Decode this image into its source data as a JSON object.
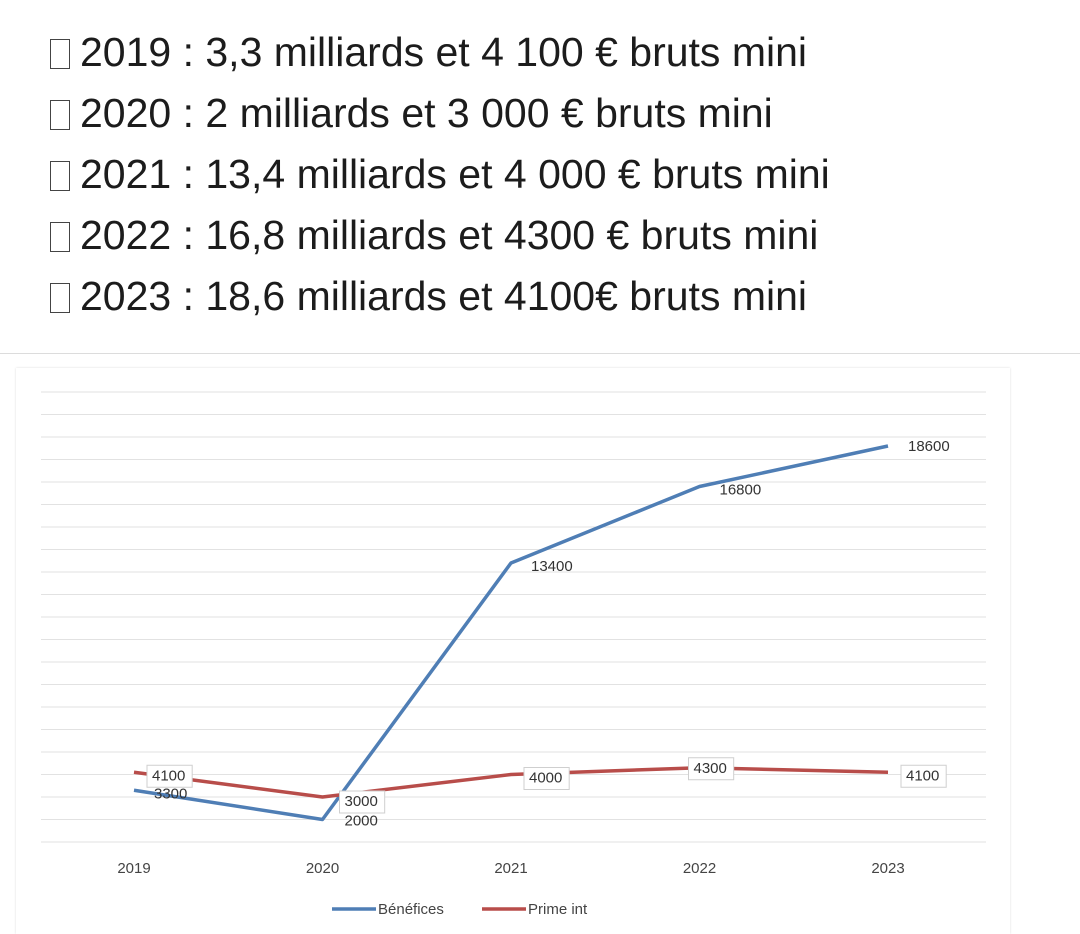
{
  "text_lines": [
    "2019 : 3,3 milliards et 4 100 € bruts mini",
    "2020 : 2 milliards et 3 000 € bruts mini",
    "2021 : 13,4 milliards et 4 000 € bruts mini",
    "2022 : 16,8 milliards et 4300 € bruts mini",
    "2023 : 18,6 milliards et 4100€ bruts mini"
  ],
  "chart_data": {
    "type": "line",
    "x": [
      "2019",
      "2020",
      "2021",
      "2022",
      "2023"
    ],
    "series": [
      {
        "name": "Bénéfices",
        "color": "#4f7eb5",
        "values": [
          3300,
          2000,
          13400,
          16800,
          18600
        ]
      },
      {
        "name": "Prime int",
        "color": "#b84d4a",
        "values": [
          4100,
          3000,
          4000,
          4300,
          4100
        ]
      }
    ],
    "ylim": [
      1000,
      21000
    ],
    "grid": true,
    "legend": "bottom"
  }
}
